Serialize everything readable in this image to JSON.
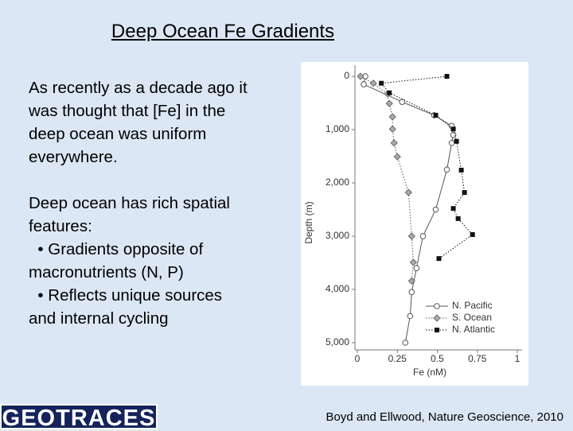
{
  "slide": {
    "title": "Deep Ocean Fe Gradients",
    "paragraphs": [
      [
        "As recently as a decade ago it",
        "was thought that [Fe] in the",
        "deep ocean was uniform",
        "everywhere."
      ],
      [
        "Deep ocean has rich spatial",
        "features:",
        "  • Gradients opposite of",
        "macronutrients (N, P)",
        "  • Reflects unique sources",
        "and internal cycling"
      ]
    ],
    "logo": "GEOTRACES",
    "citation": "Boyd and Ellwood, Nature Geoscience, 2010"
  },
  "chart_data": {
    "type": "line",
    "x_label": "Fe (nM)",
    "y_label": "Depth (m)",
    "xlim": [
      0,
      1
    ],
    "xticks": [
      0,
      0.25,
      0.5,
      0.75,
      1
    ],
    "ylim": [
      5000,
      0
    ],
    "yticks": [
      0,
      {
        "value": 1000,
        "label": "1,000"
      },
      {
        "value": 2000,
        "label": "2,000"
      },
      {
        "value": 3000,
        "label": "3,000"
      },
      {
        "value": 4000,
        "label": "4,000"
      },
      {
        "value": 5000,
        "label": "5,000"
      }
    ],
    "legend": "bottom-right",
    "series": [
      {
        "name": "N. Pacific",
        "color": "#555555",
        "marker": "circle",
        "dash": "solid",
        "x": [
          0.05,
          0.04,
          0.28,
          0.48,
          0.59,
          0.6,
          0.59,
          0.56,
          0.49,
          0.41,
          0.37,
          0.34,
          0.33,
          0.3
        ],
        "values": [
          0,
          150,
          480,
          730,
          930,
          1100,
          1250,
          1750,
          2500,
          3000,
          3600,
          4050,
          4500,
          5000
        ]
      },
      {
        "name": "S. Ocean",
        "color": "#555555",
        "marker": "diamond",
        "dash": "dotted",
        "x": [
          0.02,
          0.1,
          0.19,
          0.2,
          0.22,
          0.22,
          0.23,
          0.25,
          0.32,
          0.34,
          0.35,
          0.34
        ],
        "values": [
          0,
          130,
          330,
          510,
          760,
          990,
          1250,
          1510,
          2180,
          3000,
          3490,
          3840
        ]
      },
      {
        "name": "N. Atlantic",
        "color": "#111111",
        "marker": "square",
        "dash": "dotted",
        "x": [
          0.56,
          0.15,
          0.2,
          0.49,
          0.6,
          0.62,
          0.65,
          0.67,
          0.6,
          0.63,
          0.72,
          0.51
        ],
        "values": [
          0,
          130,
          310,
          730,
          990,
          1220,
          1760,
          2180,
          2480,
          2670,
          2970,
          3420
        ]
      }
    ]
  }
}
